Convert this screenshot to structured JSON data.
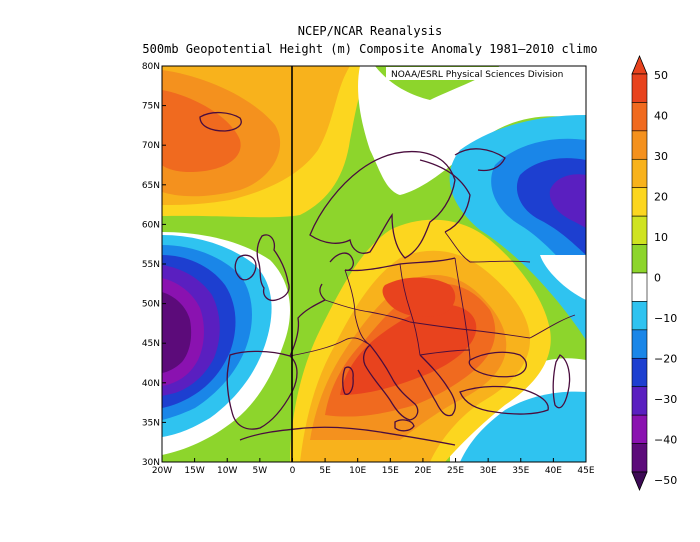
{
  "title": "NCEP/NCAR Reanalysis",
  "subtitle": "500mb Geopotential Height (m) Composite Anomaly 1981–2010 climo",
  "credit": "NOAA/ESRL Physical Sciences Division",
  "map": {
    "lon_range": [
      -20,
      45
    ],
    "lat_range": [
      30,
      80
    ],
    "lon_ticks": [
      "20W",
      "15W",
      "10W",
      "5W",
      "0",
      "5E",
      "10E",
      "15E",
      "20E",
      "25E",
      "30E",
      "35E",
      "40E",
      "45E"
    ],
    "lat_ticks": [
      "30N",
      "35N",
      "40N",
      "45N",
      "50N",
      "55N",
      "60N",
      "65N",
      "70N",
      "75N",
      "80N"
    ],
    "prime_meridian": "0"
  },
  "colorbar": {
    "labels": [
      "50",
      "40",
      "30",
      "20",
      "10",
      "0",
      "−10",
      "−20",
      "−30",
      "−40",
      "−50"
    ],
    "colors": [
      "#e8431e",
      "#f06a1f",
      "#f4911e",
      "#f8b21c",
      "#fcd61f",
      "#cfe321",
      "#8dd52c",
      "#ffffff",
      "#2fc3f0",
      "#1a86e8",
      "#1d3fd0",
      "#5a1fc0",
      "#8a12b0",
      "#5c0b7a"
    ]
  },
  "anomaly_centers": [
    {
      "name": "north-atlantic-high",
      "lon": -17,
      "lat": 70,
      "value": 40
    },
    {
      "name": "central-europe-high",
      "lon": 17,
      "lat": 46,
      "value": 45
    },
    {
      "name": "atlantic-low",
      "lon": -19,
      "lat": 46,
      "value": -50
    },
    {
      "name": "russia-low",
      "lon": 42,
      "lat": 63,
      "value": -35
    }
  ]
}
